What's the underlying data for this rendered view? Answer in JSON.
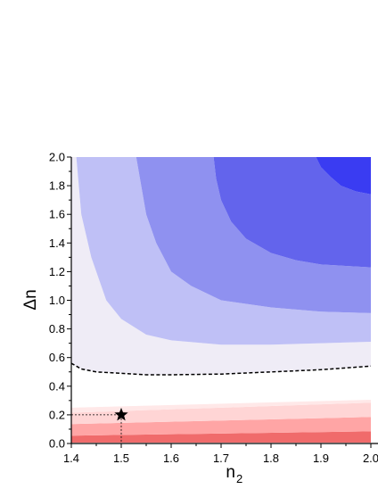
{
  "chart_data": {
    "type": "heatmap",
    "title": "",
    "xlabel": "n",
    "xlabel_subscript": "2",
    "ylabel": "Δn",
    "xlim": [
      1.4,
      2.0
    ],
    "ylim": [
      0.0,
      2.0
    ],
    "x_ticks": [
      "1.4",
      "1.5",
      "1.6",
      "1.7",
      "1.8",
      "1.9",
      "2.0"
    ],
    "y_ticks": [
      "0.0",
      "0.2",
      "0.4",
      "0.6",
      "0.8",
      "1.0",
      "1.2",
      "1.4",
      "1.6",
      "1.8",
      "2.0"
    ],
    "grid": false,
    "levels": [
      {
        "color": "#f06b6b",
        "points": [
          [
            1.4,
            0.0
          ],
          [
            2.0,
            0.0
          ],
          [
            2.0,
            0.085
          ],
          [
            1.4,
            0.055
          ]
        ]
      },
      {
        "color": "#ffa5a5",
        "points": [
          [
            1.4,
            0.055
          ],
          [
            2.0,
            0.085
          ],
          [
            2.0,
            0.185
          ],
          [
            1.4,
            0.135
          ]
        ]
      },
      {
        "color": "#ffd5d5",
        "points": [
          [
            1.4,
            0.135
          ],
          [
            2.0,
            0.185
          ],
          [
            2.0,
            0.285
          ],
          [
            1.4,
            0.215
          ]
        ]
      },
      {
        "color": "#ffe8e8",
        "points": [
          [
            1.4,
            0.215
          ],
          [
            2.0,
            0.285
          ],
          [
            2.0,
            0.305
          ],
          [
            1.4,
            0.25
          ]
        ]
      },
      {
        "color": "#efecf6",
        "points": [
          [
            1.4,
            0.56
          ],
          [
            1.42,
            0.52
          ],
          [
            1.45,
            0.5
          ],
          [
            1.55,
            0.48
          ],
          [
            1.7,
            0.485
          ],
          [
            1.8,
            0.5
          ],
          [
            1.9,
            0.515
          ],
          [
            2.0,
            0.54
          ],
          [
            2.0,
            0.71
          ],
          [
            1.9,
            0.7
          ],
          [
            1.8,
            0.69
          ],
          [
            1.7,
            0.69
          ],
          [
            1.6,
            0.72
          ],
          [
            1.55,
            0.76
          ],
          [
            1.5,
            0.87
          ],
          [
            1.47,
            1.0
          ],
          [
            1.44,
            1.3
          ],
          [
            1.42,
            1.6
          ],
          [
            1.41,
            2.0
          ],
          [
            1.4,
            2.0
          ]
        ]
      },
      {
        "color": "#bfc0f6",
        "points": [
          [
            1.41,
            2.0
          ],
          [
            1.42,
            1.6
          ],
          [
            1.44,
            1.3
          ],
          [
            1.47,
            1.0
          ],
          [
            1.5,
            0.87
          ],
          [
            1.55,
            0.76
          ],
          [
            1.6,
            0.72
          ],
          [
            1.7,
            0.69
          ],
          [
            1.8,
            0.69
          ],
          [
            1.9,
            0.7
          ],
          [
            2.0,
            0.71
          ],
          [
            2.0,
            0.91
          ],
          [
            1.9,
            0.92
          ],
          [
            1.8,
            0.95
          ],
          [
            1.7,
            1.0
          ],
          [
            1.64,
            1.1
          ],
          [
            1.6,
            1.2
          ],
          [
            1.57,
            1.4
          ],
          [
            1.55,
            1.6
          ],
          [
            1.54,
            1.8
          ],
          [
            1.53,
            2.0
          ]
        ]
      },
      {
        "color": "#8f91f0",
        "points": [
          [
            1.53,
            2.0
          ],
          [
            1.54,
            1.8
          ],
          [
            1.55,
            1.6
          ],
          [
            1.57,
            1.4
          ],
          [
            1.6,
            1.2
          ],
          [
            1.64,
            1.1
          ],
          [
            1.7,
            1.0
          ],
          [
            1.8,
            0.95
          ],
          [
            1.9,
            0.92
          ],
          [
            2.0,
            0.91
          ],
          [
            2.0,
            1.23
          ],
          [
            1.9,
            1.25
          ],
          [
            1.85,
            1.28
          ],
          [
            1.8,
            1.33
          ],
          [
            1.75,
            1.43
          ],
          [
            1.72,
            1.55
          ],
          [
            1.7,
            1.7
          ],
          [
            1.69,
            1.85
          ],
          [
            1.685,
            2.0
          ]
        ]
      },
      {
        "color": "#6364ec",
        "points": [
          [
            1.685,
            2.0
          ],
          [
            1.69,
            1.85
          ],
          [
            1.7,
            1.7
          ],
          [
            1.72,
            1.55
          ],
          [
            1.75,
            1.43
          ],
          [
            1.8,
            1.33
          ],
          [
            1.85,
            1.28
          ],
          [
            1.9,
            1.25
          ],
          [
            2.0,
            1.23
          ],
          [
            2.0,
            1.74
          ],
          [
            1.97,
            1.76
          ],
          [
            1.94,
            1.8
          ],
          [
            1.92,
            1.86
          ],
          [
            1.9,
            1.93
          ],
          [
            1.89,
            2.0
          ]
        ]
      },
      {
        "color": "#3a3cf2",
        "points": [
          [
            1.89,
            2.0
          ],
          [
            1.9,
            1.93
          ],
          [
            1.92,
            1.86
          ],
          [
            1.94,
            1.8
          ],
          [
            1.97,
            1.76
          ],
          [
            2.0,
            1.74
          ],
          [
            2.0,
            2.0
          ]
        ]
      }
    ],
    "boundary_curve": {
      "style": "dashed",
      "color": "#000000",
      "x": [
        1.4,
        1.42,
        1.45,
        1.5,
        1.55,
        1.6,
        1.7,
        1.8,
        1.9,
        2.0
      ],
      "y": [
        0.56,
        0.52,
        0.5,
        0.49,
        0.48,
        0.48,
        0.485,
        0.5,
        0.515,
        0.54
      ]
    },
    "marker": {
      "shape": "star",
      "x": 1.5,
      "y": 0.2,
      "color": "#000000"
    }
  }
}
